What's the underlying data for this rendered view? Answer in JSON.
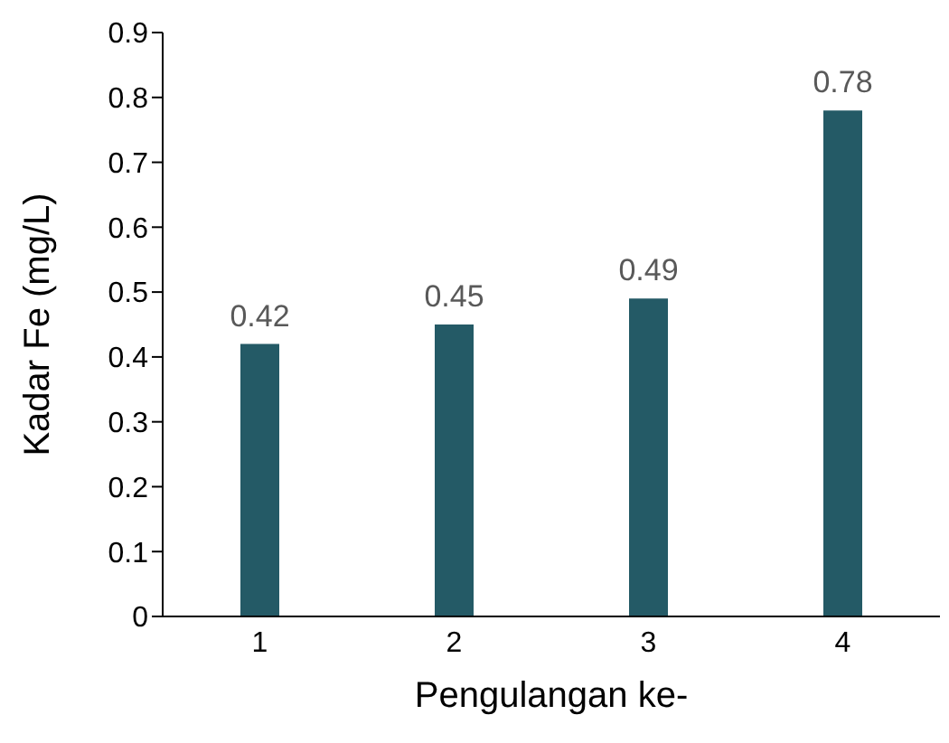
{
  "chart_data": {
    "type": "bar",
    "xlabel": "Pengulangan ke-",
    "ylabel": "Kadar Fe (mg/L)",
    "categories": [
      "1",
      "2",
      "3",
      "4"
    ],
    "values": [
      0.42,
      0.45,
      0.49,
      0.78
    ],
    "color": "#245a66",
    "ylim": [
      0,
      0.9
    ],
    "yticks": [
      0,
      0.1,
      0.2,
      0.3,
      0.4,
      0.5,
      0.6,
      0.7,
      0.8,
      0.9
    ],
    "data_labels": true,
    "grid": false,
    "legend": false
  }
}
